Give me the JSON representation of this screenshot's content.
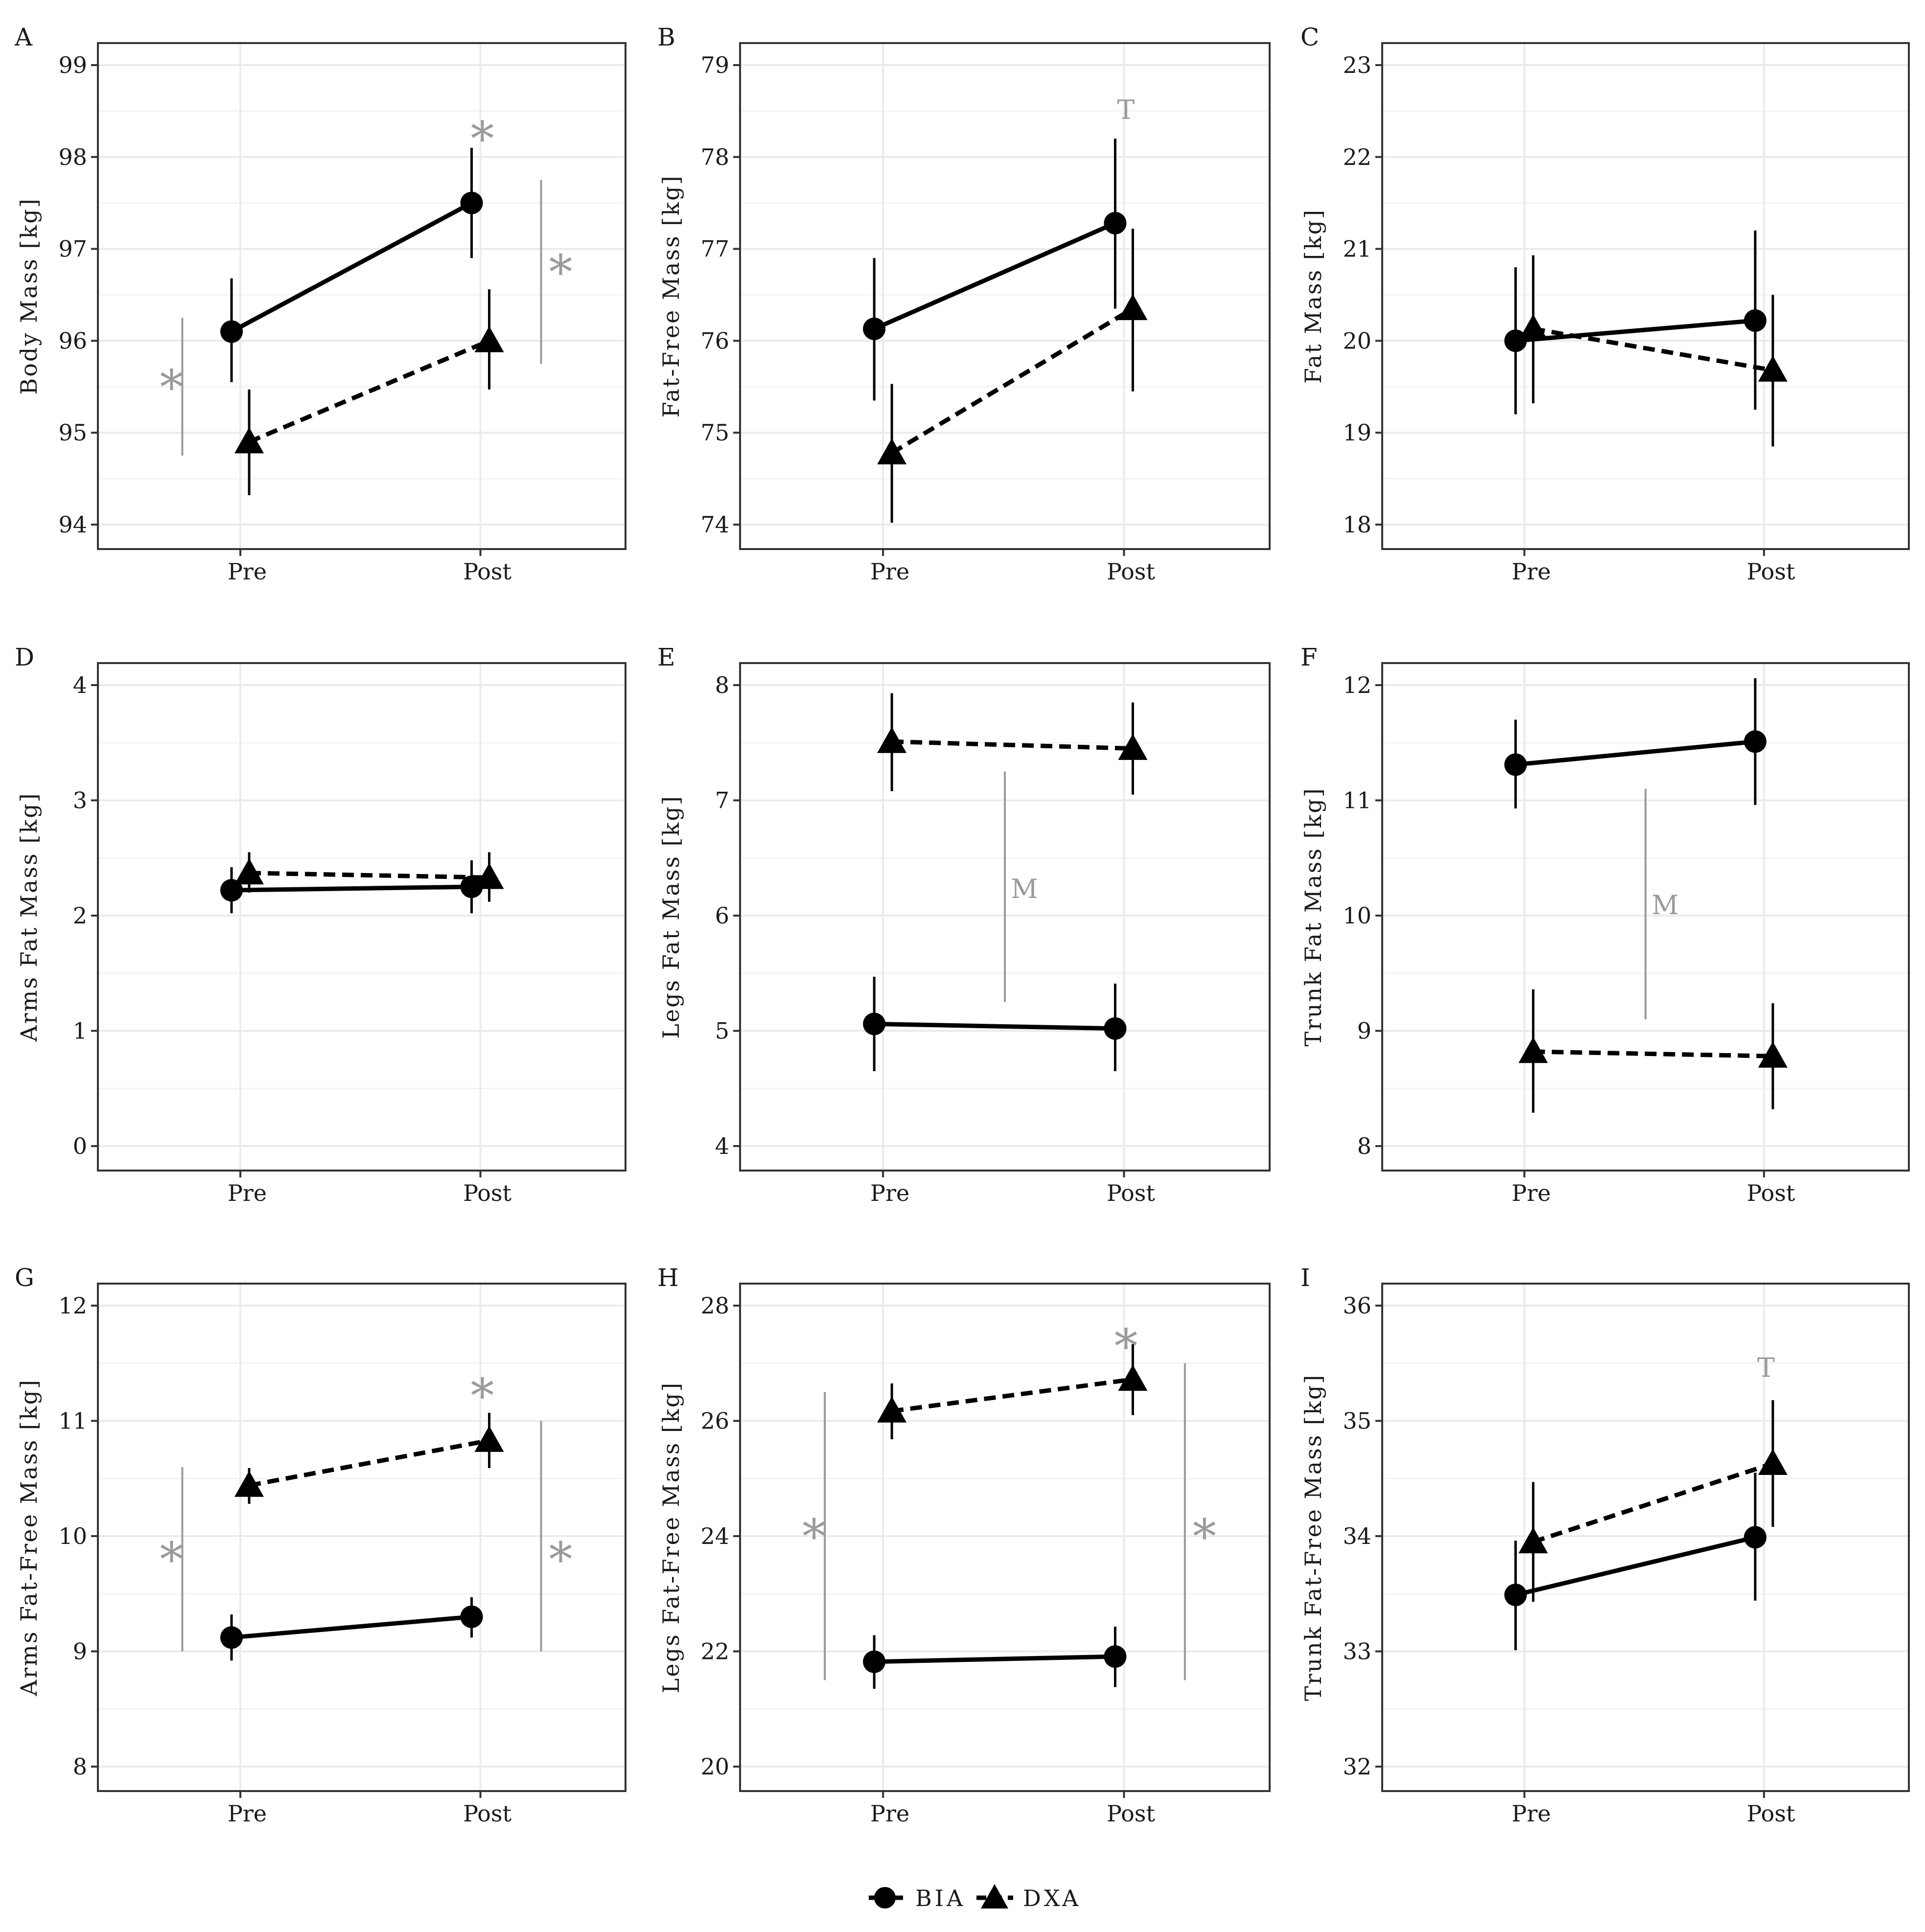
{
  "legend": {
    "items": [
      {
        "label": "BIA",
        "marker": "circle",
        "line": "solid"
      },
      {
        "label": "DXA",
        "marker": "triangle",
        "line": "dashed"
      }
    ]
  },
  "colors": {
    "series": "#000000",
    "annotation": "#9a9a9a",
    "grid": "#ebebeb",
    "border": "#333333"
  },
  "chart_data": [
    {
      "tag": "A",
      "type": "line",
      "ylabel": "Body Mass [kg]",
      "categories": [
        "Pre",
        "Post"
      ],
      "ylim": [
        94,
        99
      ],
      "yticks": [
        94,
        95,
        96,
        97,
        98,
        99
      ],
      "series": [
        {
          "name": "BIA",
          "values": [
            96.1,
            97.5
          ],
          "lower": [
            95.55,
            96.9
          ],
          "upper": [
            96.68,
            98.1
          ]
        },
        {
          "name": "DXA",
          "values": [
            94.9,
            96.0
          ],
          "lower": [
            94.32,
            95.47
          ],
          "upper": [
            95.47,
            96.56
          ]
        }
      ],
      "annotations": [
        {
          "text": "*",
          "kind": "star",
          "at": "Post",
          "y": 98.2
        },
        {
          "text": "*",
          "kind": "bracket",
          "side": "left",
          "ymin": 94.75,
          "ymax": 96.25,
          "ytext": 95.5
        },
        {
          "text": "*",
          "kind": "bracket",
          "side": "right",
          "ymin": 95.75,
          "ymax": 97.75,
          "ytext": 96.75
        }
      ]
    },
    {
      "tag": "B",
      "type": "line",
      "ylabel": "Fat-Free Mass [kg]",
      "categories": [
        "Pre",
        "Post"
      ],
      "ylim": [
        74,
        79
      ],
      "yticks": [
        74,
        75,
        76,
        77,
        78,
        79
      ],
      "series": [
        {
          "name": "BIA",
          "values": [
            76.13,
            77.28
          ],
          "lower": [
            75.35,
            76.35
          ],
          "upper": [
            76.9,
            78.2
          ]
        },
        {
          "name": "DXA",
          "values": [
            74.78,
            76.35
          ],
          "lower": [
            74.02,
            75.45
          ],
          "upper": [
            75.53,
            77.22
          ]
        }
      ],
      "annotations": [
        {
          "text": "T",
          "kind": "label",
          "at": "Post",
          "y": 78.5
        }
      ]
    },
    {
      "tag": "C",
      "type": "line",
      "ylabel": "Fat Mass [kg]",
      "categories": [
        "Pre",
        "Post"
      ],
      "ylim": [
        18,
        23
      ],
      "yticks": [
        18,
        19,
        20,
        21,
        22,
        23
      ],
      "series": [
        {
          "name": "BIA",
          "values": [
            20.0,
            20.22
          ],
          "lower": [
            19.2,
            19.25
          ],
          "upper": [
            20.8,
            21.2
          ]
        },
        {
          "name": "DXA",
          "values": [
            20.13,
            19.68
          ],
          "lower": [
            19.32,
            18.85
          ],
          "upper": [
            20.93,
            20.5
          ]
        }
      ],
      "annotations": []
    },
    {
      "tag": "D",
      "type": "line",
      "ylabel": "Arms Fat Mass [kg]",
      "categories": [
        "Pre",
        "Post"
      ],
      "ylim": [
        0,
        4
      ],
      "yticks": [
        0,
        1,
        2,
        3,
        4
      ],
      "series": [
        {
          "name": "BIA",
          "values": [
            2.22,
            2.25
          ],
          "lower": [
            2.02,
            2.02
          ],
          "upper": [
            2.42,
            2.48
          ]
        },
        {
          "name": "DXA",
          "values": [
            2.37,
            2.33
          ],
          "lower": [
            2.2,
            2.12
          ],
          "upper": [
            2.55,
            2.55
          ]
        }
      ],
      "annotations": []
    },
    {
      "tag": "E",
      "type": "line",
      "ylabel": "Legs Fat Mass [kg]",
      "categories": [
        "Pre",
        "Post"
      ],
      "ylim": [
        4,
        8
      ],
      "yticks": [
        4,
        5,
        6,
        7,
        8
      ],
      "series": [
        {
          "name": "BIA",
          "values": [
            5.06,
            5.02
          ],
          "lower": [
            4.65,
            4.65
          ],
          "upper": [
            5.47,
            5.41
          ]
        },
        {
          "name": "DXA",
          "values": [
            7.51,
            7.45
          ],
          "lower": [
            7.08,
            7.05
          ],
          "upper": [
            7.93,
            7.85
          ]
        }
      ],
      "annotations": [
        {
          "text": "M",
          "kind": "bracket",
          "side": "middle",
          "ymin": 5.25,
          "ymax": 7.25,
          "ytext": 6.22
        }
      ]
    },
    {
      "tag": "F",
      "type": "line",
      "ylabel": "Trunk Fat Mass [kg]",
      "categories": [
        "Pre",
        "Post"
      ],
      "ylim": [
        8,
        12
      ],
      "yticks": [
        8,
        9,
        10,
        11,
        12
      ],
      "series": [
        {
          "name": "BIA",
          "values": [
            11.31,
            11.51
          ],
          "lower": [
            10.93,
            10.96
          ],
          "upper": [
            11.7,
            12.06
          ]
        },
        {
          "name": "DXA",
          "values": [
            8.82,
            8.78
          ],
          "lower": [
            8.29,
            8.32
          ],
          "upper": [
            9.36,
            9.24
          ]
        }
      ],
      "annotations": [
        {
          "text": "M",
          "kind": "bracket",
          "side": "middle",
          "ymin": 9.1,
          "ymax": 11.1,
          "ytext": 10.08
        }
      ]
    },
    {
      "tag": "G",
      "type": "line",
      "ylabel": "Arms Fat-Free Mass [kg]",
      "categories": [
        "Pre",
        "Post"
      ],
      "ylim": [
        8,
        12
      ],
      "yticks": [
        8,
        9,
        10,
        11,
        12
      ],
      "series": [
        {
          "name": "BIA",
          "values": [
            9.12,
            9.3
          ],
          "lower": [
            8.92,
            9.12
          ],
          "upper": [
            9.32,
            9.47
          ]
        },
        {
          "name": "DXA",
          "values": [
            10.44,
            10.83
          ],
          "lower": [
            10.28,
            10.59
          ],
          "upper": [
            10.59,
            11.07
          ]
        }
      ],
      "annotations": [
        {
          "text": "*",
          "kind": "star",
          "at": "Post",
          "y": 11.22
        },
        {
          "text": "*",
          "kind": "bracket",
          "side": "left",
          "ymin": 9.0,
          "ymax": 10.6,
          "ytext": 9.8
        },
        {
          "text": "*",
          "kind": "bracket",
          "side": "right",
          "ymin": 9.0,
          "ymax": 11.0,
          "ytext": 9.8
        }
      ]
    },
    {
      "tag": "H",
      "type": "line",
      "ylabel": "Legs Fat-Free Mass [kg]",
      "categories": [
        "Pre",
        "Post"
      ],
      "ylim": [
        20,
        28
      ],
      "yticks": [
        20,
        22,
        24,
        26,
        28
      ],
      "series": [
        {
          "name": "BIA",
          "values": [
            21.82,
            21.91
          ],
          "lower": [
            21.35,
            21.38
          ],
          "upper": [
            22.28,
            22.43
          ]
        },
        {
          "name": "DXA",
          "values": [
            26.17,
            26.72
          ],
          "lower": [
            25.68,
            26.1
          ],
          "upper": [
            26.65,
            27.33
          ]
        }
      ],
      "annotations": [
        {
          "text": "*",
          "kind": "star",
          "at": "Post",
          "y": 27.3
        },
        {
          "text": "*",
          "kind": "bracket",
          "side": "left",
          "ymin": 21.5,
          "ymax": 26.5,
          "ytext": 24.0
        },
        {
          "text": "*",
          "kind": "bracket",
          "side": "right",
          "ymin": 21.5,
          "ymax": 27.0,
          "ytext": 24.0
        }
      ]
    },
    {
      "tag": "I",
      "type": "line",
      "ylabel": "Trunk Fat-Free Mass [kg]",
      "categories": [
        "Pre",
        "Post"
      ],
      "ylim": [
        32,
        36
      ],
      "yticks": [
        32,
        33,
        34,
        35,
        36
      ],
      "series": [
        {
          "name": "BIA",
          "values": [
            33.49,
            33.99
          ],
          "lower": [
            33.01,
            33.44
          ],
          "upper": [
            33.96,
            34.55
          ]
        },
        {
          "name": "DXA",
          "values": [
            33.95,
            34.63
          ],
          "lower": [
            33.43,
            34.08
          ],
          "upper": [
            34.47,
            35.18
          ]
        }
      ],
      "annotations": [
        {
          "text": "T",
          "kind": "label",
          "at": "Post",
          "y": 35.45
        }
      ]
    }
  ]
}
